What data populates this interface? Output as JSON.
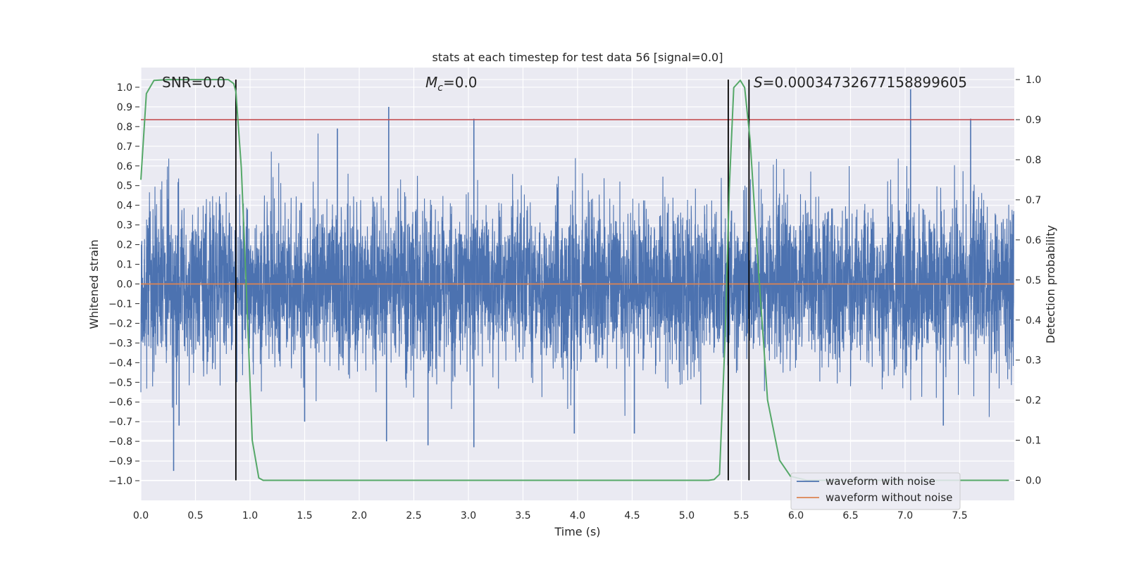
{
  "chart_data": {
    "type": "line",
    "title": "stats at each timestep for test data 56 [signal=0.0]",
    "xlabel": "Time (s)",
    "ylabel": "Whitened strain",
    "y2label": "Detection probability",
    "xlim": [
      0.0,
      8.0
    ],
    "ylim": [
      -1.1,
      1.1
    ],
    "y2lim": [
      -0.05,
      1.03
    ],
    "x_ticks": [
      0.0,
      0.5,
      1.0,
      1.5,
      2.0,
      2.5,
      3.0,
      3.5,
      4.0,
      4.5,
      5.0,
      5.5,
      6.0,
      6.5,
      7.0,
      7.5
    ],
    "x_tick_labels": [
      "0.0",
      "0.5",
      "1.0",
      "1.5",
      "2.0",
      "2.5",
      "3.0",
      "3.5",
      "4.0",
      "4.5",
      "5.0",
      "5.5",
      "6.0",
      "6.5",
      "7.0",
      "7.5"
    ],
    "y_ticks": [
      -1.0,
      -0.9,
      -0.8,
      -0.7,
      -0.6,
      -0.5,
      -0.4,
      -0.3,
      -0.2,
      -0.1,
      0.0,
      0.1,
      0.2,
      0.3,
      0.4,
      0.5,
      0.6,
      0.7,
      0.8,
      0.9,
      1.0
    ],
    "y_tick_labels": [
      "−1.0",
      "−0.9",
      "−0.8",
      "−0.7",
      "−0.6",
      "−0.5",
      "−0.4",
      "−0.3",
      "−0.2",
      "−0.1",
      "0.0",
      "0.1",
      "0.2",
      "0.3",
      "0.4",
      "0.5",
      "0.6",
      "0.7",
      "0.8",
      "0.9",
      "1.0"
    ],
    "y2_ticks": [
      0.0,
      0.1,
      0.2,
      0.3,
      0.4,
      0.5,
      0.6,
      0.7,
      0.8,
      0.9,
      1.0
    ],
    "y2_tick_labels": [
      "0.0",
      "0.1",
      "0.2",
      "0.3",
      "0.4",
      "0.5",
      "0.6",
      "0.7",
      "0.8",
      "0.9",
      "1.0"
    ],
    "series": [
      {
        "name": "waveform with noise",
        "color": "#4c72b0",
        "description": "dense noise, approx. range -0.95 to 0.99",
        "peaks": [
          {
            "x": 0.3,
            "y": -0.95
          },
          {
            "x": 0.35,
            "y": -0.72
          },
          {
            "x": 1.5,
            "y": -0.7
          },
          {
            "x": 1.8,
            "y": 0.79
          },
          {
            "x": 2.27,
            "y": 0.9
          },
          {
            "x": 2.25,
            "y": -0.8
          },
          {
            "x": 2.63,
            "y": -0.82
          },
          {
            "x": 3.05,
            "y": 0.84
          },
          {
            "x": 3.05,
            "y": -0.83
          },
          {
            "x": 3.97,
            "y": -0.76
          },
          {
            "x": 4.52,
            "y": -0.76
          },
          {
            "x": 7.05,
            "y": 0.99
          },
          {
            "x": 7.35,
            "y": -0.72
          },
          {
            "x": 7.6,
            "y": 0.84
          }
        ]
      },
      {
        "name": "waveform without noise",
        "color": "#dd8452",
        "points": [
          [
            0.0,
            0.0
          ],
          [
            8.0,
            0.0
          ]
        ]
      },
      {
        "name": "detection probability",
        "color": "#55a868",
        "axis": "right",
        "points": [
          [
            0.0,
            0.75
          ],
          [
            0.05,
            0.965
          ],
          [
            0.12,
            0.998
          ],
          [
            0.25,
            1.0
          ],
          [
            0.8,
            1.0
          ],
          [
            0.85,
            0.99
          ],
          [
            0.87,
            0.97
          ],
          [
            0.92,
            0.78
          ],
          [
            0.97,
            0.45
          ],
          [
            1.02,
            0.1
          ],
          [
            1.08,
            0.006
          ],
          [
            1.12,
            0.0
          ],
          [
            5.2,
            0.0
          ],
          [
            5.25,
            0.002
          ],
          [
            5.3,
            0.015
          ],
          [
            5.35,
            0.35
          ],
          [
            5.39,
            0.73
          ],
          [
            5.43,
            0.98
          ],
          [
            5.49,
            0.998
          ],
          [
            5.53,
            0.98
          ],
          [
            5.58,
            0.85
          ],
          [
            5.65,
            0.55
          ],
          [
            5.74,
            0.2
          ],
          [
            5.85,
            0.05
          ],
          [
            5.95,
            0.01
          ],
          [
            6.1,
            0.0
          ],
          [
            7.95,
            0.0
          ]
        ]
      }
    ],
    "hlines": [
      {
        "y": 0.9,
        "axis": "right",
        "color": "#c44e52"
      }
    ],
    "vlines": [
      {
        "x": 0.87,
        "color": "#000000"
      },
      {
        "x": 5.38,
        "color": "#000000"
      },
      {
        "x": 5.57,
        "color": "#000000"
      }
    ],
    "annotations": {
      "snr": "SNR=0.0",
      "mc_symbol": "M",
      "mc_sub": "c",
      "mc_value": "=0.0",
      "s_symbol": "S",
      "s_value": "=0.0003473267715889960​5"
    },
    "legend": {
      "placement": "lower-right",
      "entries": [
        "waveform with noise",
        "waveform without noise"
      ]
    }
  }
}
